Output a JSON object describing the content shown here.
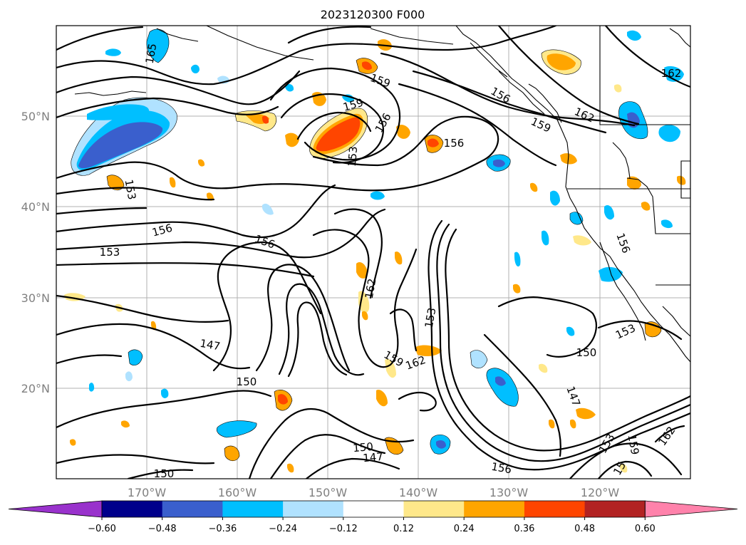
{
  "title": "2023120300 F000",
  "latitude_labels": [
    "50°N",
    "40°N",
    "30°N",
    "20°N"
  ],
  "longitude_labels": [
    "170°W",
    "160°W",
    "150°W",
    "140°W",
    "130°W",
    "120°W"
  ],
  "colorbar": {
    "ticks": [
      "−0.60",
      "−0.48",
      "−0.36",
      "−0.24",
      "−0.12",
      "0.12",
      "0.24",
      "0.36",
      "0.48",
      "0.60"
    ],
    "colors": [
      "#9932cc",
      "#00008b",
      "#3a5fcd",
      "#00bfff",
      "#b0e2ff",
      "#ffffff",
      "#ffe88a",
      "#ffa500",
      "#ff4500",
      "#b22222",
      "#ff82ab"
    ]
  },
  "contour_labels": [
    {
      "text": "165",
      "key": "a"
    },
    {
      "text": "162",
      "key": "b"
    },
    {
      "text": "159",
      "key": "c"
    },
    {
      "text": "159",
      "key": "d"
    },
    {
      "text": "156",
      "key": "e"
    },
    {
      "text": "156",
      "key": "f"
    },
    {
      "text": "156",
      "key": "g"
    },
    {
      "text": "153",
      "key": "h"
    },
    {
      "text": "162",
      "key": "i"
    },
    {
      "text": "159",
      "key": "j"
    },
    {
      "text": "153",
      "key": "k"
    },
    {
      "text": "156",
      "key": "l"
    },
    {
      "text": "156",
      "key": "m"
    },
    {
      "text": "153",
      "key": "n"
    },
    {
      "text": "156",
      "key": "o"
    },
    {
      "text": "162",
      "key": "p"
    },
    {
      "text": "153",
      "key": "q"
    },
    {
      "text": "147",
      "key": "r"
    },
    {
      "text": "150",
      "key": "s"
    },
    {
      "text": "159",
      "key": "t"
    },
    {
      "text": "162",
      "key": "u"
    },
    {
      "text": "153",
      "key": "v"
    },
    {
      "text": "150",
      "key": "w"
    },
    {
      "text": "147",
      "key": "x"
    },
    {
      "text": "150",
      "key": "y"
    },
    {
      "text": "147",
      "key": "z"
    },
    {
      "text": "156",
      "key": "aa"
    },
    {
      "text": "150",
      "key": "ab"
    },
    {
      "text": "153",
      "key": "ac"
    },
    {
      "text": "159",
      "key": "ad"
    },
    {
      "text": "162",
      "key": "ae"
    },
    {
      "text": "15",
      "key": "af"
    }
  ]
}
